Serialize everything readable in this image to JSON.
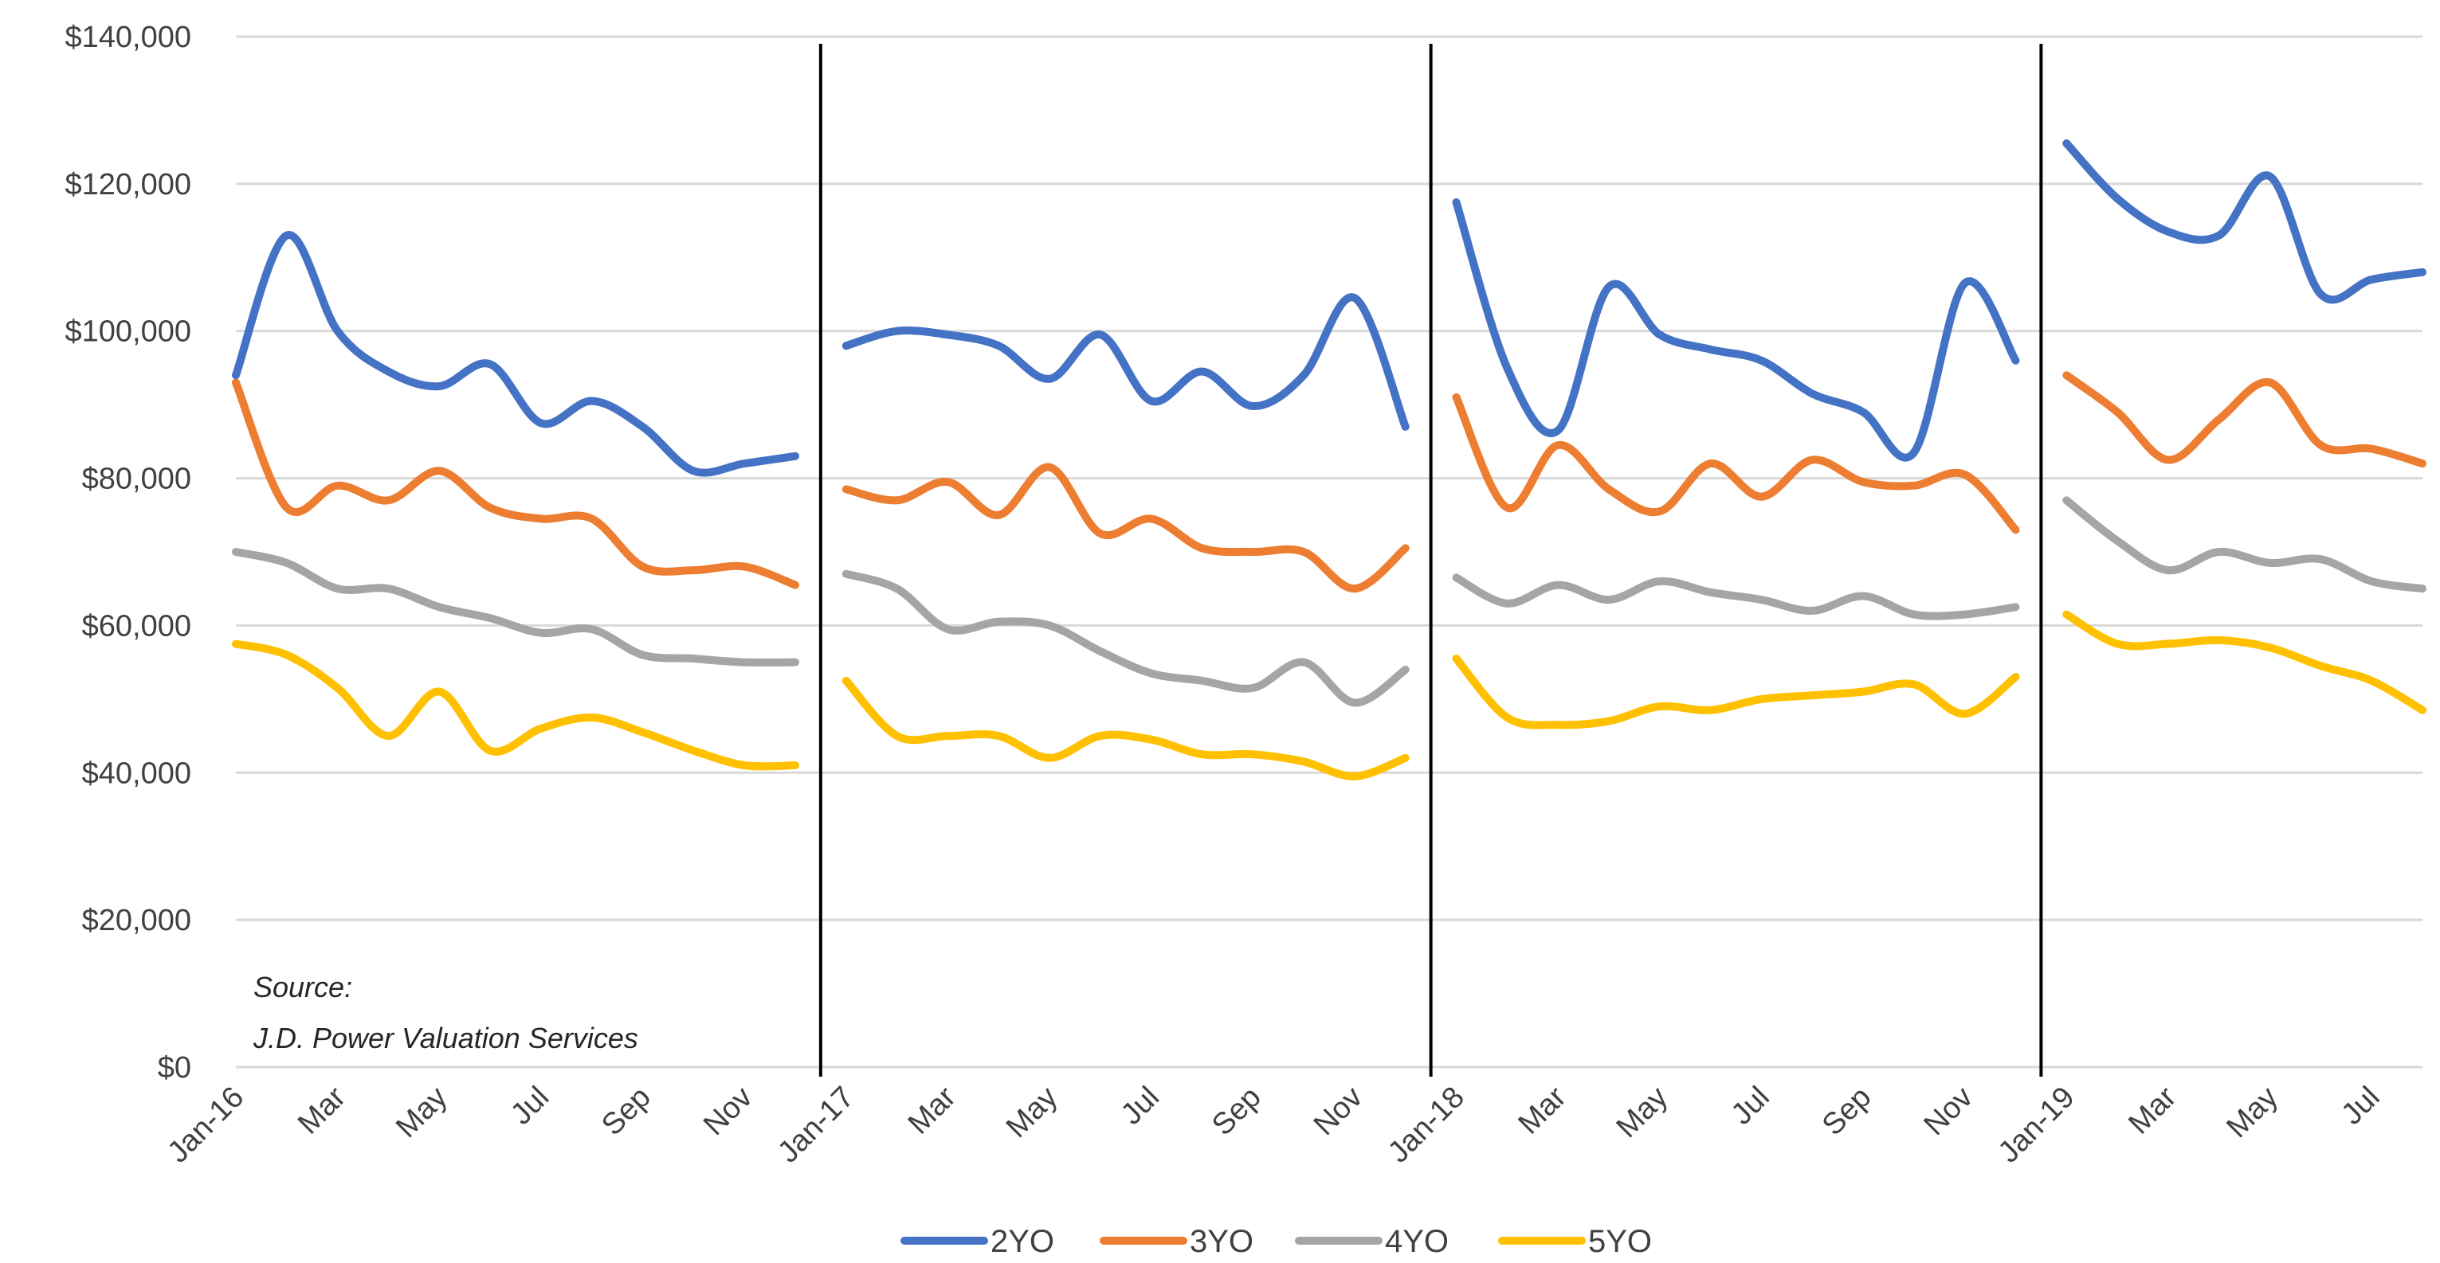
{
  "chart_data": {
    "type": "line",
    "title": "",
    "xlabel": "",
    "ylabel": "",
    "ylim": [
      0,
      140000
    ],
    "y_ticks": [
      0,
      20000,
      40000,
      60000,
      80000,
      100000,
      120000,
      140000
    ],
    "y_tick_labels": [
      "$0",
      "$20,000",
      "$40,000",
      "$60,000",
      "$80,000",
      "$100,000",
      "$120,000",
      "$140,000"
    ],
    "grid": true,
    "legend_position": "bottom",
    "x_tick_positions": [
      0,
      2,
      4,
      6,
      8,
      10,
      12,
      14,
      16,
      18,
      20,
      22,
      24,
      26,
      28,
      30,
      32,
      34,
      36,
      38,
      40,
      42
    ],
    "x_tick_labels": [
      "Jan-16",
      "Mar",
      "May",
      "Jul",
      "Sep",
      "Nov",
      "Jan-17",
      "Mar",
      "May",
      "Jul",
      "Sep",
      "Nov",
      "Jan-18",
      "Mar",
      "May",
      "Jul",
      "Sep",
      "Nov",
      "Jan-19",
      "Mar",
      "May",
      "Jul"
    ],
    "year_dividers": [
      11.5,
      23.5,
      35.5
    ],
    "annotation": [
      "Source:",
      "J.D. Power Valuation Services"
    ],
    "series": [
      {
        "name": "2YO",
        "color": "#4472C4",
        "segments": [
          {
            "start": 0,
            "values": [
              94000,
              113000,
              100000,
              94500,
              92500,
              95500,
              87500,
              90500,
              87000,
              81000,
              82000,
              83000
            ]
          },
          {
            "start": 12,
            "values": [
              98000,
              100000,
              99500,
              98000,
              93500,
              99500,
              90500,
              94500,
              89800,
              94000,
              104500,
              87000
            ]
          },
          {
            "start": 24,
            "values": [
              117500,
              95000,
              86500,
              106000,
              99500,
              97500,
              96000,
              91500,
              89000,
              83500,
              106500,
              96000
            ]
          },
          {
            "start": 36,
            "values": [
              125500,
              118000,
              113500,
              113000,
              121000,
              105000,
              107000,
              108000
            ]
          }
        ]
      },
      {
        "name": "3YO",
        "color": "#ED7D31",
        "segments": [
          {
            "start": 0,
            "values": [
              93000,
              76000,
              79000,
              77000,
              81000,
              76000,
              74500,
              74500,
              68000,
              67500,
              68000,
              65500
            ]
          },
          {
            "start": 12,
            "values": [
              78500,
              77000,
              79500,
              75000,
              81500,
              72500,
              74500,
              70500,
              70000,
              70000,
              65000,
              70500
            ]
          },
          {
            "start": 24,
            "values": [
              91000,
              76000,
              84500,
              78500,
              75500,
              82000,
              77500,
              82500,
              79500,
              79000,
              80500,
              73000
            ]
          },
          {
            "start": 36,
            "values": [
              94000,
              89000,
              82500,
              88000,
              93000,
              84500,
              84000,
              82000
            ]
          }
        ]
      },
      {
        "name": "4YO",
        "color": "#A5A5A5",
        "segments": [
          {
            "start": 0,
            "values": [
              70000,
              68500,
              65000,
              65000,
              62500,
              61000,
              59000,
              59500,
              56000,
              55500,
              55000,
              55000
            ]
          },
          {
            "start": 12,
            "values": [
              67000,
              65000,
              59500,
              60500,
              60000,
              56500,
              53500,
              52500,
              51500,
              55000,
              49500,
              54000
            ]
          },
          {
            "start": 24,
            "values": [
              66500,
              63000,
              65500,
              63500,
              66000,
              64500,
              63500,
              62000,
              64000,
              61500,
              61500,
              62500
            ]
          },
          {
            "start": 36,
            "values": [
              77000,
              71500,
              67500,
              70000,
              68500,
              69000,
              66000,
              65000
            ]
          }
        ]
      },
      {
        "name": "5YO",
        "color": "#FFC000",
        "segments": [
          {
            "start": 0,
            "values": [
              57500,
              56000,
              51500,
              45000,
              51000,
              43000,
              46000,
              47500,
              45500,
              43000,
              41000,
              41000
            ]
          },
          {
            "start": 12,
            "values": [
              52500,
              45000,
              45000,
              45000,
              42000,
              45000,
              44500,
              42500,
              42500,
              41500,
              39500,
              42000
            ]
          },
          {
            "start": 24,
            "values": [
              55500,
              47500,
              46500,
              47000,
              49000,
              48500,
              50000,
              50500,
              51000,
              52000,
              48000,
              53000
            ]
          },
          {
            "start": 36,
            "values": [
              61500,
              57500,
              57500,
              58000,
              57000,
              54500,
              52500,
              48500
            ]
          }
        ]
      }
    ]
  }
}
